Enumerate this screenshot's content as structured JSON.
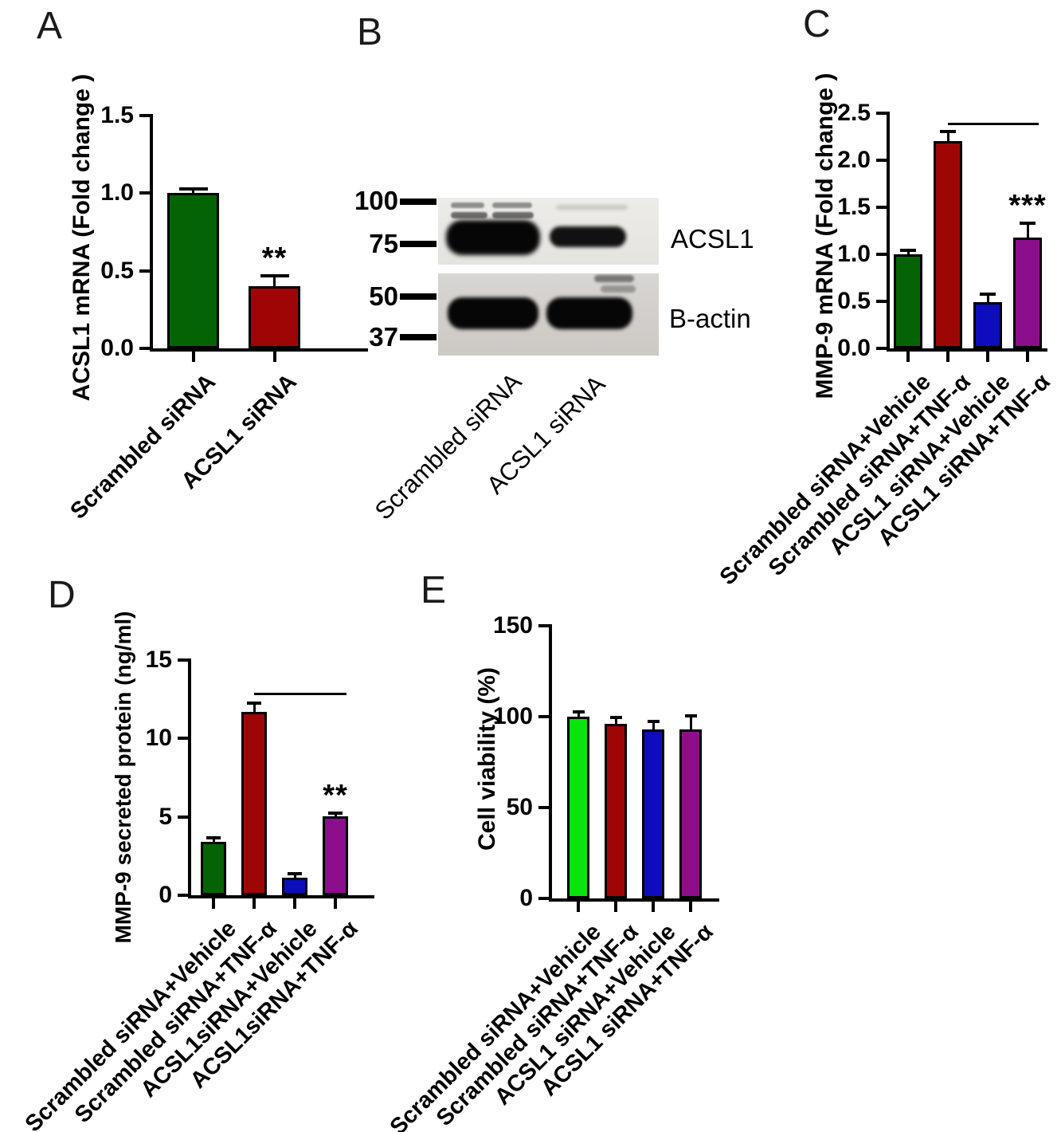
{
  "figure": {
    "background": "#ffffff"
  },
  "panels": {
    "A": {
      "letter": "A"
    },
    "B": {
      "letter": "B"
    },
    "C": {
      "letter": "C"
    },
    "D": {
      "letter": "D"
    },
    "E": {
      "letter": "E"
    }
  },
  "colors": {
    "dark_green": "#046404",
    "dark_red": "#9e0606",
    "blue": "#0d0dbd",
    "purple": "#8c0e8c",
    "lime_green": "#0be40b",
    "axis": "#000000"
  },
  "western_blot": {
    "mw_markers": [
      "100",
      "75",
      "50",
      "37"
    ],
    "band_labels": [
      "ACSL1",
      "B-actin"
    ],
    "lane_labels": [
      "Scrambled siRNA",
      "ACSL1 siRNA"
    ]
  },
  "chart_data": [
    {
      "panel": "A",
      "type": "bar",
      "ylabel": "ACSL1 mRNA (Fold change )",
      "ylim": [
        0,
        1.5
      ],
      "yticks": [
        "0.0",
        "0.5",
        "1.0",
        "1.5"
      ],
      "grid": false,
      "legend": null,
      "categories": [
        "Scrambled siRNA",
        "ACSL1 siRNA"
      ],
      "values": [
        1.0,
        0.4
      ],
      "errors": [
        0.02,
        0.06
      ],
      "bar_colors": [
        "dark_green",
        "dark_red"
      ],
      "significance": [
        {
          "bar": 1,
          "stars": "**"
        }
      ]
    },
    {
      "panel": "C",
      "type": "bar",
      "ylabel": "MMP-9 mRNA (Fold change )",
      "ylim": [
        0,
        2.5
      ],
      "yticks": [
        "0.0",
        "0.5",
        "1.0",
        "1.5",
        "2.0",
        "2.5"
      ],
      "grid": false,
      "legend": null,
      "categories": [
        "Scrambled siRNA+Vehicle",
        "Scrambled siRNA+TNF-α",
        "ACSL1 siRNA+Vehicle",
        "ACSL1 siRNA+TNF-α"
      ],
      "values": [
        1.0,
        2.2,
        0.49,
        1.18
      ],
      "errors": [
        0.03,
        0.1,
        0.08,
        0.14
      ],
      "bar_colors": [
        "dark_green",
        "dark_red",
        "blue",
        "purple"
      ],
      "significance": [
        {
          "bar": 3,
          "stars": "***"
        }
      ],
      "sig_line": {
        "from_bar": 1,
        "to_bar": 3,
        "y": 2.4
      }
    },
    {
      "panel": "D",
      "type": "bar",
      "ylabel": "MMP-9 secreted protein (ng/ml)",
      "ylim": [
        0,
        15
      ],
      "yticks": [
        "0",
        "5",
        "10",
        "15"
      ],
      "grid": false,
      "legend": null,
      "categories": [
        "Scrambled siRNA+Vehicle",
        "Scrambled siRNA+TNF-α",
        "ACSL1siRNA+Vehicle",
        "ACSL1siRNA+TNF-α"
      ],
      "values": [
        3.4,
        11.7,
        1.1,
        5.05
      ],
      "errors": [
        0.2,
        0.5,
        0.2,
        0.12
      ],
      "bar_colors": [
        "dark_green",
        "dark_red",
        "blue",
        "purple"
      ],
      "significance": [
        {
          "bar": 3,
          "stars": "**"
        }
      ],
      "sig_line": {
        "from_bar": 1,
        "to_bar": 3,
        "y": 12.9
      }
    },
    {
      "panel": "E",
      "type": "bar",
      "ylabel": "Cell viability (%)",
      "ylim": [
        0,
        150
      ],
      "yticks": [
        "0",
        "50",
        "100",
        "150"
      ],
      "grid": false,
      "legend": null,
      "categories": [
        "Scrambled siRNA+Vehicle",
        "Scrambled siRNA+TNF-α",
        "ACSL1 siRNA+Vehicle",
        "ACSL1 siRNA+TNF-α"
      ],
      "values": [
        100,
        96,
        93,
        93
      ],
      "errors": [
        2,
        3,
        4,
        7
      ],
      "bar_colors": [
        "lime_green",
        "dark_red",
        "blue",
        "purple"
      ],
      "significance": []
    }
  ]
}
